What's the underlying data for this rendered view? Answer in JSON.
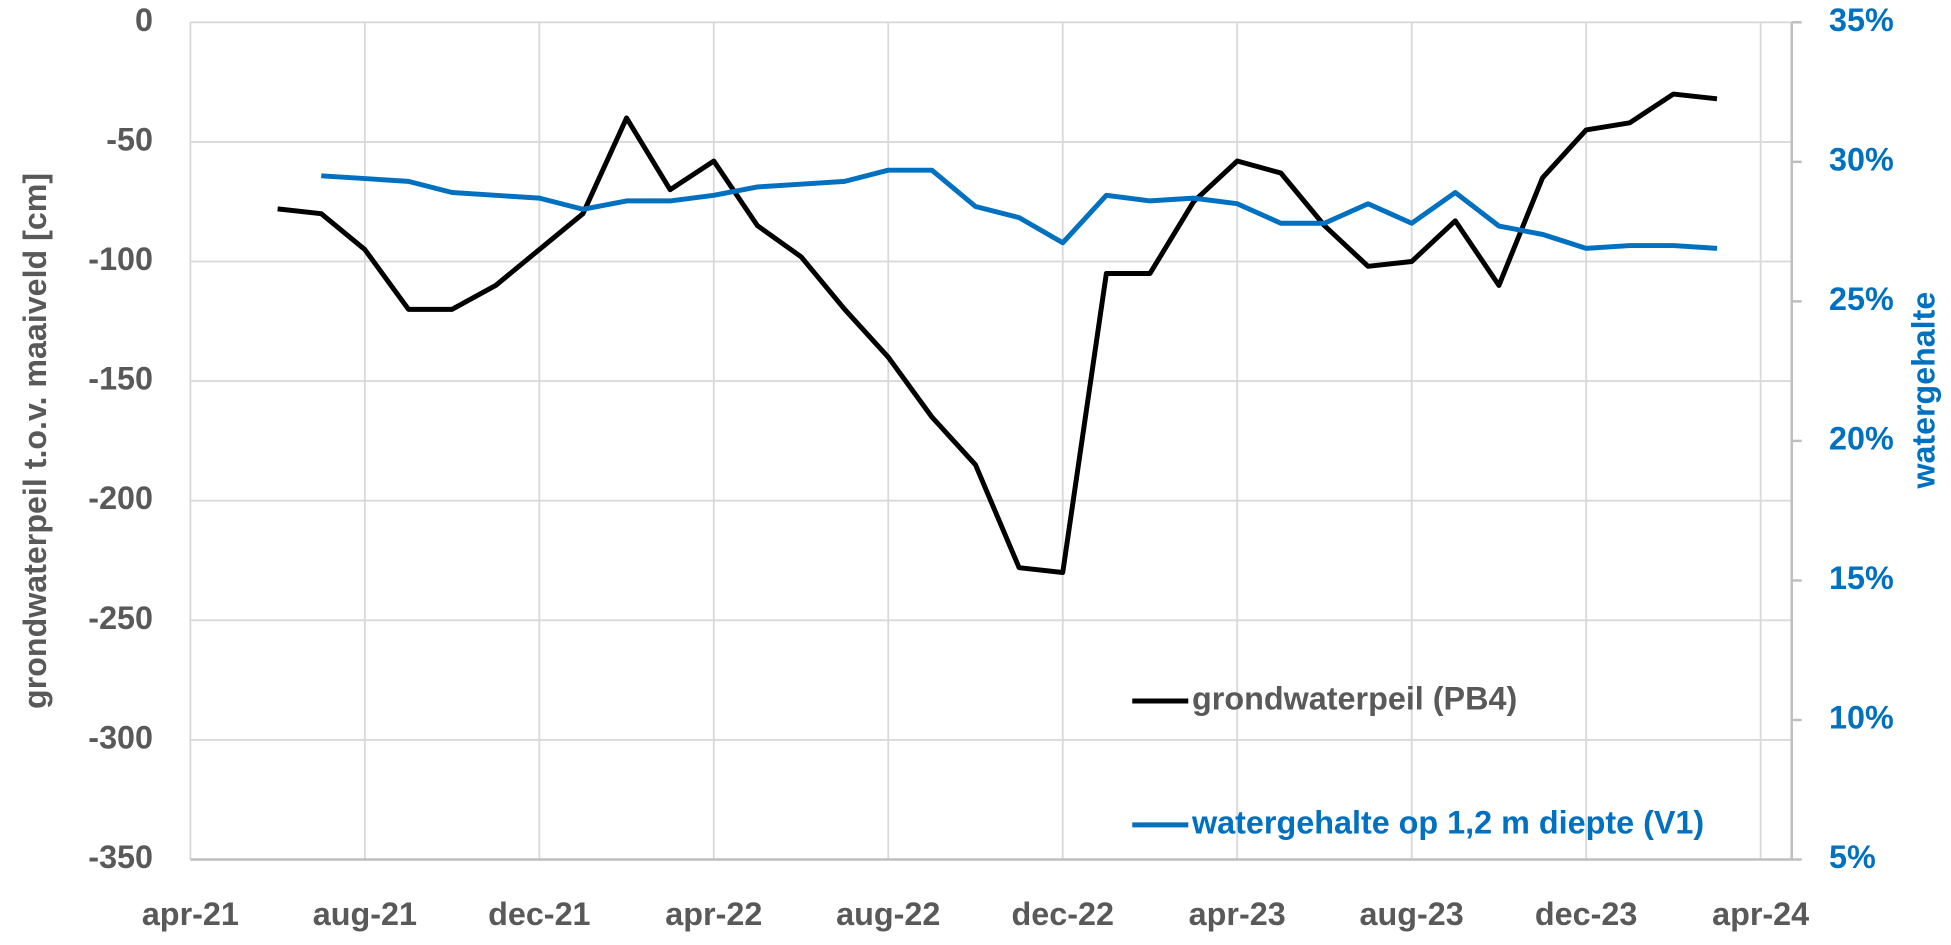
{
  "chart_data": {
    "type": "line",
    "x": [
      "2021-06",
      "2021-07",
      "2021-08",
      "2021-09",
      "2021-10",
      "2021-11",
      "2021-12",
      "2022-01",
      "2022-02",
      "2022-03",
      "2022-04",
      "2022-05",
      "2022-06",
      "2022-07",
      "2022-08",
      "2022-09",
      "2022-10",
      "2022-11",
      "2022-12",
      "2023-01",
      "2023-02",
      "2023-03",
      "2023-04",
      "2023-05",
      "2023-06",
      "2023-07",
      "2023-08",
      "2023-09",
      "2023-10",
      "2023-11",
      "2023-12",
      "2024-01",
      "2024-02",
      "2024-03"
    ],
    "series": [
      {
        "name": "grondwaterpeil (PB4)",
        "color": "#000000",
        "values": [
          -78,
          -80,
          -95,
          -120,
          -120,
          -110,
          -95,
          -80,
          -40,
          -70,
          -58,
          -85,
          -98,
          -120,
          -140,
          -165,
          -185,
          -228,
          -230,
          -105,
          -105,
          -75,
          -58,
          -63,
          -85,
          -102,
          -100,
          -83,
          -110,
          -65,
          -45,
          -42,
          -30,
          -32
        ]
      },
      {
        "name": "watergehalte op 1,2 m diepte (V1)",
        "color": "#0070c0",
        "axis": "y2",
        "values": [
          null,
          29.5,
          29.4,
          29.3,
          28.9,
          28.8,
          28.7,
          28.3,
          28.6,
          28.6,
          28.8,
          29.1,
          29.2,
          29.3,
          29.7,
          29.7,
          28.4,
          28.0,
          27.1,
          28.8,
          28.6,
          28.7,
          28.5,
          27.8,
          27.8,
          28.5,
          27.8,
          28.9,
          27.7,
          27.4,
          26.9,
          27.0,
          27.0,
          26.9
        ]
      }
    ],
    "xlim": [
      "2021-04",
      "2024-04"
    ],
    "xticks": [
      {
        "value": "2021-04",
        "label": "apr-21"
      },
      {
        "value": "2021-08",
        "label": "aug-21"
      },
      {
        "value": "2021-12",
        "label": "dec-21"
      },
      {
        "value": "2022-04",
        "label": "apr-22"
      },
      {
        "value": "2022-08",
        "label": "aug-22"
      },
      {
        "value": "2022-12",
        "label": "dec-22"
      },
      {
        "value": "2023-04",
        "label": "apr-23"
      },
      {
        "value": "2023-08",
        "label": "aug-23"
      },
      {
        "value": "2023-12",
        "label": "dec-23"
      },
      {
        "value": "2024-04",
        "label": "apr-24"
      }
    ],
    "ylim": [
      -350,
      0
    ],
    "yticks": [
      0,
      -50,
      -100,
      -150,
      -200,
      -250,
      -300,
      -350
    ],
    "y2lim": [
      5,
      35
    ],
    "y2ticks": [
      {
        "value": 35,
        "label": "35%"
      },
      {
        "value": 30,
        "label": "30%"
      },
      {
        "value": 25,
        "label": "25%"
      },
      {
        "value": 20,
        "label": "20%"
      },
      {
        "value": 15,
        "label": "15%"
      },
      {
        "value": 10,
        "label": "10%"
      },
      {
        "value": 5,
        "label": "5%"
      }
    ],
    "ylabel": "grondwaterpeil t.o.v. maaiveld [cm]",
    "y2label": "watergehalte",
    "grid": true,
    "legend": "lower right"
  }
}
